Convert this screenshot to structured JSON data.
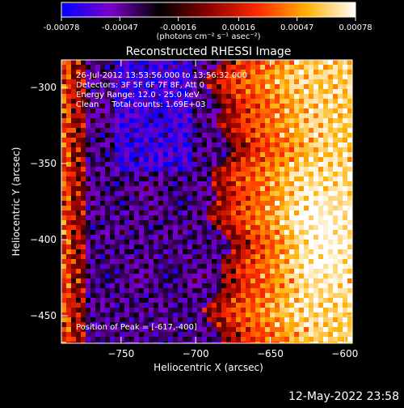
{
  "app": {
    "footer_date": "12-May-2022 23:58"
  },
  "colorbar": {
    "ticks": [
      "-0.00078",
      "-0.00047",
      "-0.00016",
      "0.00016",
      "0.00047",
      "0.00078"
    ],
    "unit_label": "(photons cm⁻² s⁻¹ asec⁻²)",
    "range": [
      -0.00078,
      0.00078
    ],
    "colors": [
      "#0000ff",
      "#7a00c8",
      "#000000",
      "#8a0000",
      "#ff2a00",
      "#ffb000",
      "#ffffff"
    ]
  },
  "chart_data": {
    "type": "heatmap",
    "title": "Reconstructed RHESSI Image",
    "xlabel": "Heliocentric X (arcsec)",
    "ylabel": "Heliocentric Y (arcsec)",
    "xlim": [
      -790,
      -595
    ],
    "ylim": [
      -468,
      -282
    ],
    "x_ticks": [
      -750,
      -700,
      -650,
      -600
    ],
    "y_ticks": [
      -300,
      -350,
      -400,
      -450
    ],
    "x_tick_labels": [
      "−750",
      "−700",
      "−650",
      "−600"
    ],
    "y_tick_labels": [
      "−300",
      "−350",
      "−400",
      "−450"
    ],
    "annotations": [
      "26-Jul-2012 13:53:56.000 to 13:56:32.000",
      "Detectors: 3F 5F 6F 7F 8F, Att 0",
      "Energy Range: 12.0 - 25.0 keV",
      "Clean     Total counts: 1.69E+03"
    ],
    "peak_label": "Position of Peak = [-617,-400]",
    "peak": [
      -617,
      -400
    ],
    "grid": false
  }
}
